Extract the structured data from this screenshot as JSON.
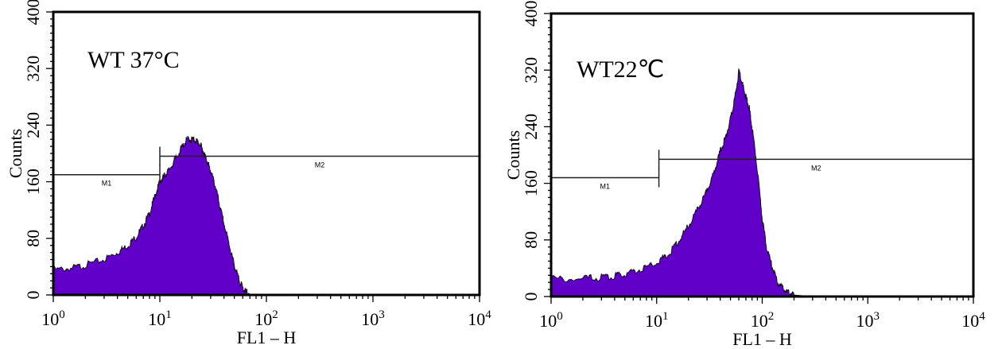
{
  "chart_data": [
    {
      "type": "area",
      "title": "WT 37°C",
      "xlabel": "FL1 – H",
      "ylabel": "Counts",
      "x_scale": "log",
      "xlim": [
        1,
        10000
      ],
      "ylim": [
        0,
        400
      ],
      "x_tick_labels": [
        {
          "base": "10",
          "exp": "0"
        },
        {
          "base": "10",
          "exp": "1"
        },
        {
          "base": "10",
          "exp": "2"
        },
        {
          "base": "10",
          "exp": "3"
        },
        {
          "base": "10",
          "exp": "4"
        }
      ],
      "y_ticks": [
        "0",
        "80",
        "160",
        "240",
        "320",
        "400"
      ],
      "fill_color": "#6000c8",
      "markers": [
        {
          "label": "M1",
          "range": [
            1,
            10
          ],
          "y": 170
        },
        {
          "label": "M2",
          "range": [
            10,
            10000
          ],
          "y": 196
        }
      ],
      "series": [
        {
          "x": [
            1,
            1.5,
            2,
            3,
            4,
            5,
            6,
            7,
            8,
            9,
            10,
            11,
            12,
            14,
            16,
            18,
            20,
            22,
            24,
            26,
            28,
            30,
            33,
            36,
            40,
            45,
            50,
            55,
            60,
            65,
            70,
            80,
            100,
            10000
          ],
          "y": [
            35,
            38,
            42,
            50,
            60,
            70,
            82,
            98,
            115,
            140,
            160,
            168,
            175,
            192,
            208,
            220,
            220,
            218,
            212,
            200,
            188,
            175,
            155,
            130,
            100,
            70,
            42,
            22,
            10,
            4,
            1,
            0,
            0,
            0
          ]
        }
      ]
    },
    {
      "type": "area",
      "title": "WT22℃",
      "xlabel": "FL1 – H",
      "ylabel": "Counts",
      "x_scale": "log",
      "xlim": [
        1,
        10000
      ],
      "ylim": [
        0,
        400
      ],
      "x_tick_labels": [
        {
          "base": "10",
          "exp": "0"
        },
        {
          "base": "10",
          "exp": "1"
        },
        {
          "base": "10",
          "exp": "2"
        },
        {
          "base": "10",
          "exp": "3"
        },
        {
          "base": "10",
          "exp": "4"
        }
      ],
      "y_ticks": [
        "0",
        "80",
        "160",
        "240",
        "320",
        "400"
      ],
      "fill_color": "#6000c8",
      "markers": [
        {
          "label": "M1",
          "range": [
            1,
            10.5
          ],
          "y": 168
        },
        {
          "label": "M2",
          "range": [
            10.5,
            10000
          ],
          "y": 194
        }
      ],
      "series": [
        {
          "x": [
            1,
            2,
            3,
            4,
            5,
            7,
            10,
            13,
            16,
            20,
            25,
            30,
            35,
            40,
            45,
            50,
            55,
            60,
            65,
            70,
            75,
            80,
            90,
            100,
            110,
            125,
            140,
            160,
            180,
            200,
            250,
            300,
            10000
          ],
          "y": [
            25,
            25,
            27,
            29,
            32,
            38,
            48,
            60,
            78,
            100,
            125,
            150,
            175,
            205,
            225,
            250,
            280,
            318,
            300,
            282,
            268,
            240,
            180,
            110,
            70,
            40,
            20,
            10,
            5,
            2,
            1,
            0,
            0
          ]
        }
      ]
    }
  ]
}
